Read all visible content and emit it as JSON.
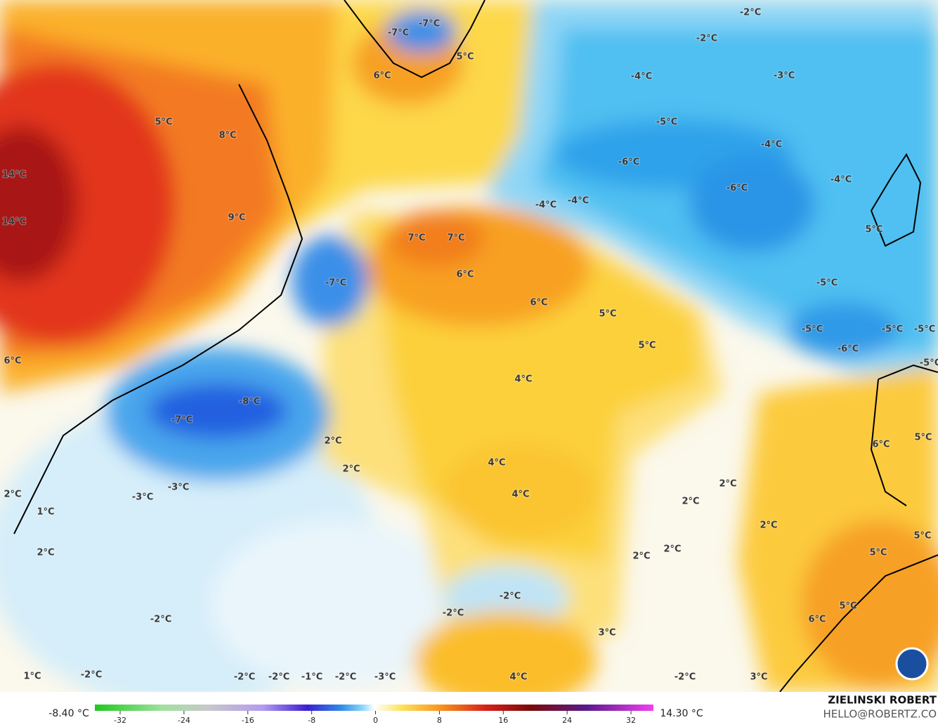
{
  "labels": [
    "-7°C",
    "-7°C",
    "-2°C",
    "-2°C",
    "5°C",
    "6°C",
    "-4°C",
    "-3°C",
    "5°C",
    "8°C",
    "-5°C",
    "-4°C",
    "-6°C",
    "14°C",
    "-4°C",
    "-6°C",
    "-4°C",
    "-4°C",
    "9°C",
    "14°C",
    "5°C",
    "7°C",
    "7°C",
    "6°C",
    "-7°C",
    "-5°C",
    "6°C",
    "5°C",
    "-5°C",
    "-5°C",
    "-5°C",
    "5°C",
    "-6°C",
    "6°C",
    "-5°C",
    "4°C",
    "-8°C",
    "-7°C",
    "2°C",
    "6°C",
    "5°C",
    "4°C",
    "2°C",
    "2°C",
    "-3°C",
    "-3°C",
    "2°C",
    "4°C",
    "2°C",
    "1°C",
    "2°C",
    "5°C",
    "2°C",
    "2°C",
    "2°C",
    "5°C",
    "-2°C",
    "5°C",
    "-2°C",
    "-2°C",
    "6°C",
    "3°C",
    "1°C",
    "-2°C",
    "-2°C",
    "-2°C",
    "-1°C",
    "-2°C",
    "-3°C",
    "4°C",
    "-2°C",
    "3°C"
  ],
  "colorbar": {
    "min_label": "-8.40 °C",
    "max_label": "14.30 °C",
    "ticks": [
      -32,
      -24,
      -16,
      -8,
      0,
      8,
      16,
      24,
      32
    ]
  },
  "credit": {
    "name": "ZIELINSKI ROBERT",
    "contact": "HELLO@ROBERTZ.CO"
  }
}
